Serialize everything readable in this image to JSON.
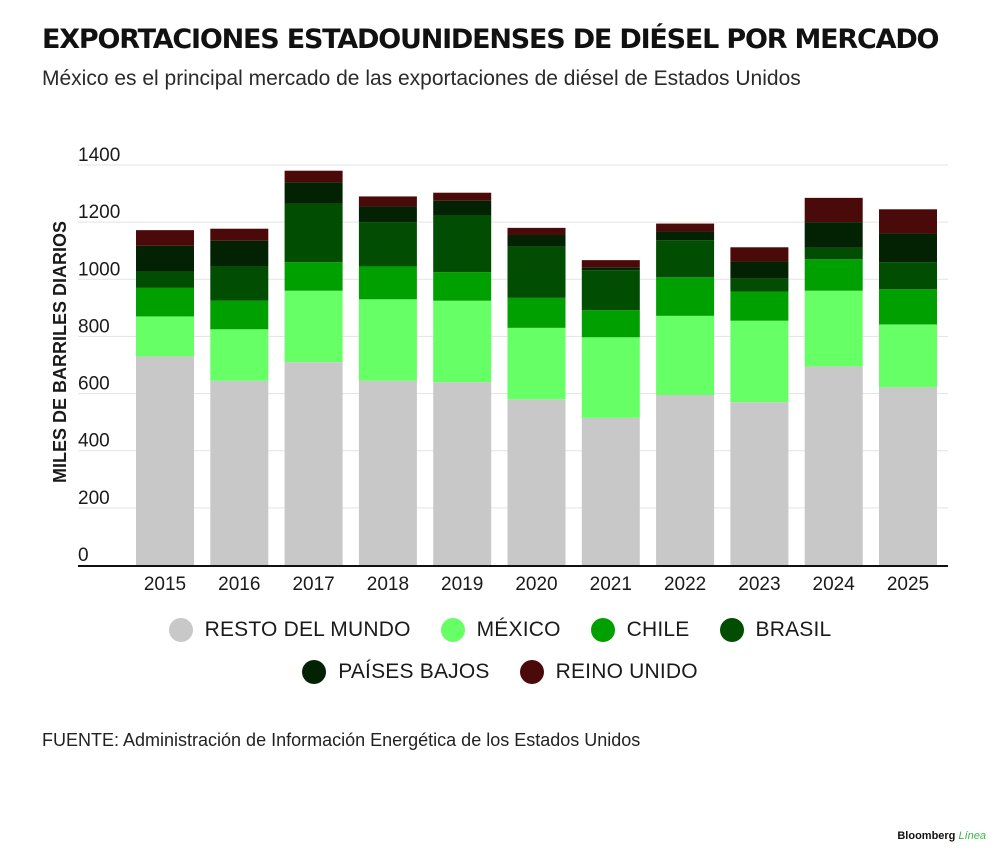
{
  "header": {
    "title": "EXPORTACIONES ESTADOUNIDENSES DE DIÉSEL POR MERCADO",
    "subtitle": "México es el principal mercado de las exportaciones de diésel de Estados Unidos"
  },
  "chart_data": {
    "type": "bar",
    "stacked": true,
    "title": "EXPORTACIONES ESTADOUNIDENSES DE DIÉSEL POR MERCADO",
    "subtitle": "México es el principal mercado de las exportaciones de diésel de Estados Unidos",
    "ylabel": "MILES DE BARRILES DIARIOS",
    "xlabel": "",
    "ylim": [
      0,
      1400
    ],
    "yticks": [
      0,
      200,
      400,
      600,
      800,
      1000,
      1200,
      1400
    ],
    "grid": true,
    "legend_position": "bottom",
    "categories": [
      "2015",
      "2016",
      "2017",
      "2018",
      "2019",
      "2020",
      "2021",
      "2022",
      "2023",
      "2024",
      "2025"
    ],
    "series": [
      {
        "name": "RESTO DEL MUNDO",
        "color": "#c8c8c8",
        "values": [
          730,
          645,
          710,
          645,
          640,
          580,
          515,
          595,
          570,
          695,
          622
        ]
      },
      {
        "name": "MÉXICO",
        "color": "#66ff66",
        "values": [
          140,
          180,
          250,
          285,
          285,
          250,
          282,
          277,
          285,
          265,
          220
        ]
      },
      {
        "name": "CHILE",
        "color": "#00a000",
        "values": [
          100,
          100,
          100,
          115,
          100,
          105,
          95,
          135,
          102,
          110,
          123
        ]
      },
      {
        "name": "BRASIL",
        "color": "#014d01",
        "values": [
          57,
          120,
          205,
          155,
          200,
          180,
          140,
          130,
          45,
          40,
          95
        ]
      },
      {
        "name": "PAÍSES BAJOS",
        "color": "#032203",
        "values": [
          90,
          90,
          75,
          55,
          50,
          40,
          10,
          30,
          60,
          90,
          100
        ]
      },
      {
        "name": "REINO UNIDO",
        "color": "#4a0a0a",
        "values": [
          55,
          42,
          40,
          35,
          28,
          25,
          25,
          28,
          50,
          85,
          85
        ]
      }
    ]
  },
  "source": "FUENTE: Administración de Información Energética de los Estados Unidos",
  "brand": {
    "name": "Bloomberg",
    "accent": "Línea"
  }
}
